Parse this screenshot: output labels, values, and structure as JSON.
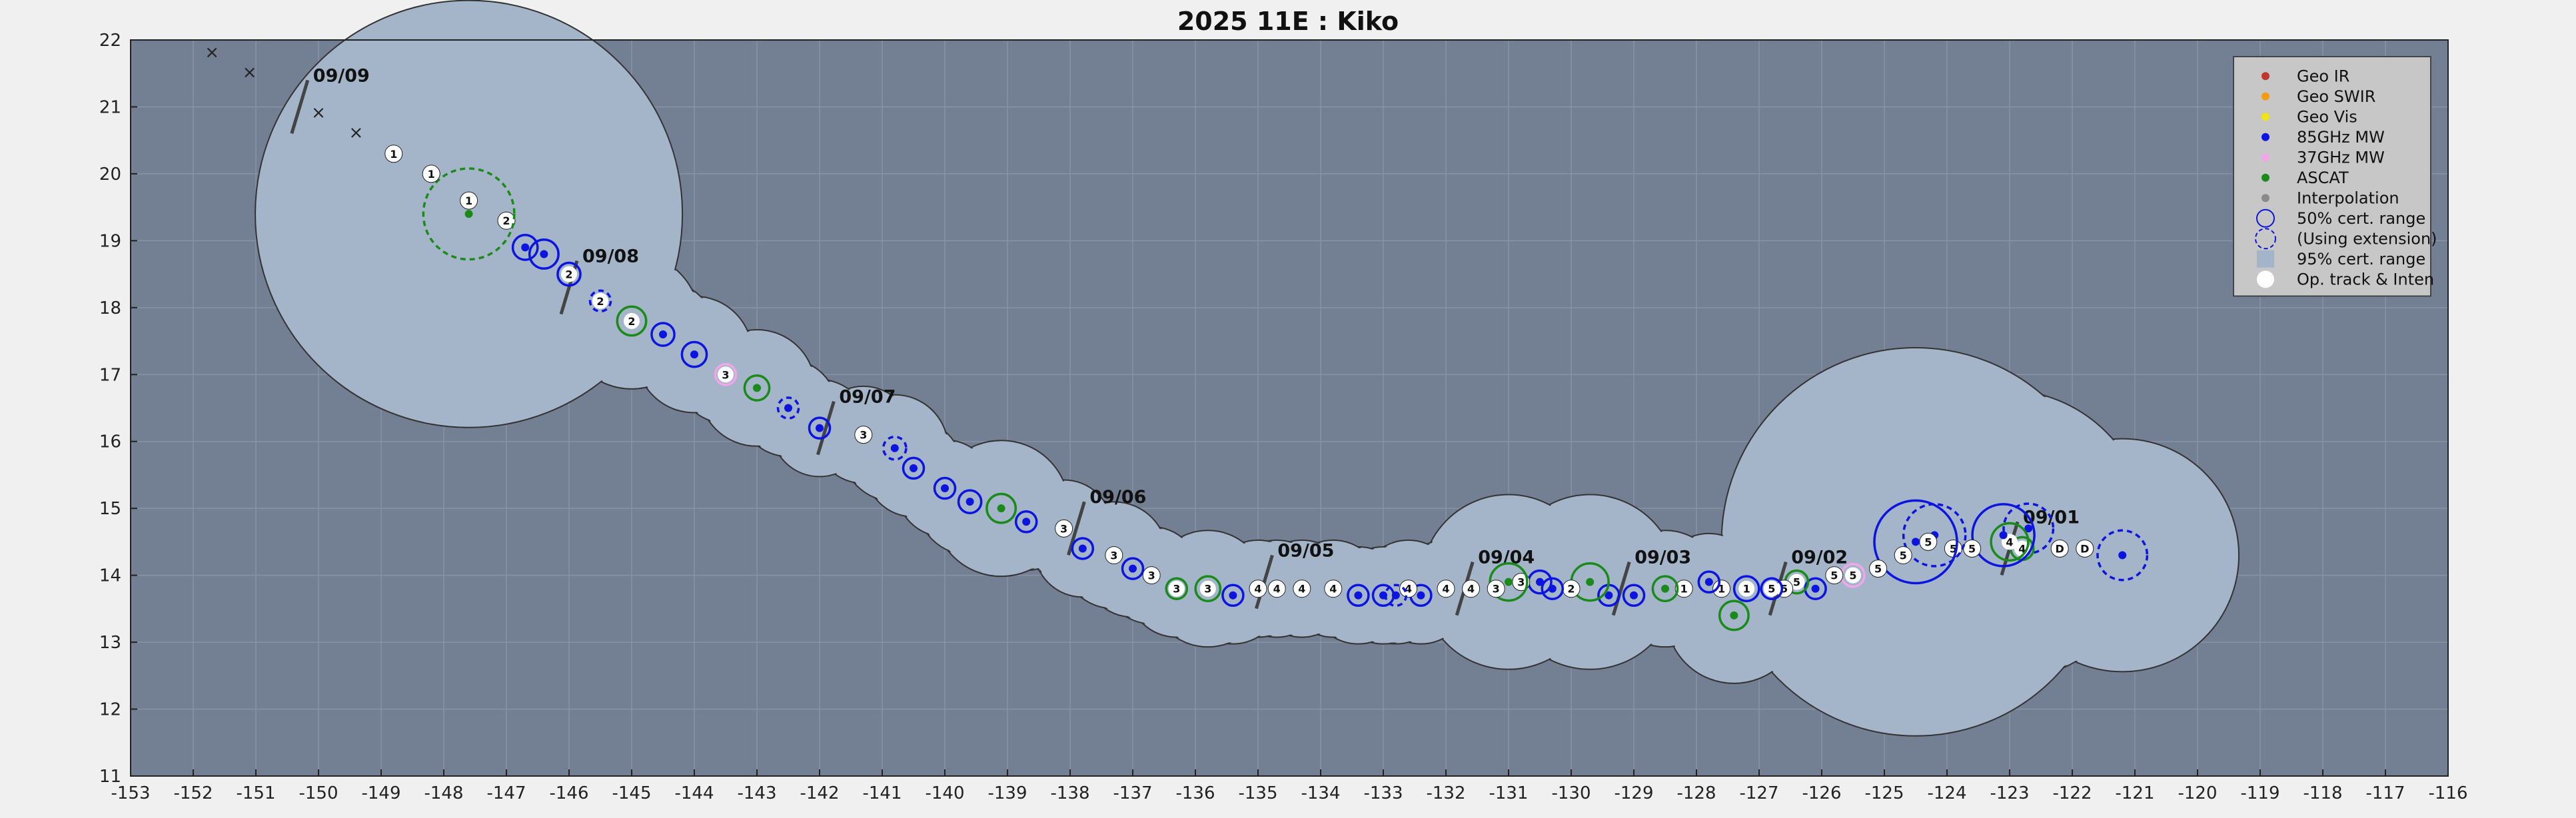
{
  "chart_data": {
    "type": "scatter",
    "title": "2025  11E :  Kiko",
    "xlabel": "",
    "ylabel": "",
    "xlim": [
      -153,
      -116
    ],
    "ylim": [
      11,
      22
    ],
    "xticks": [
      "-153",
      "-152",
      "-151",
      "-150",
      "-149",
      "-148",
      "-147",
      "-146",
      "-145",
      "-144",
      "-143",
      "-142",
      "-141",
      "-140",
      "-139",
      "-138",
      "-137",
      "-136",
      "-135",
      "-134",
      "-133",
      "-132",
      "-131",
      "-130",
      "-129",
      "-128",
      "-127",
      "-126",
      "-125",
      "-124",
      "-123",
      "-122",
      "-121",
      "-120",
      "-119",
      "-118",
      "-117",
      "-116"
    ],
    "yticks": [
      "11",
      "12",
      "13",
      "14",
      "15",
      "16",
      "17",
      "18",
      "19",
      "20",
      "21",
      "22"
    ],
    "grid": true,
    "legend_position": "top-right",
    "colors": {
      "background": "#737f93",
      "cone": "#a5b5c9",
      "geo_ir": "#c0392b",
      "geo_swir": "#f39c12",
      "geo_vis": "#f1e40f",
      "mw85": "#0b14e0",
      "mw37": "#f0a6e8",
      "ascat": "#1a8a1a",
      "interp": "#8a8a8a"
    },
    "legend": [
      {
        "label": "Geo IR",
        "kind": "dot",
        "color": "#c0392b"
      },
      {
        "label": "Geo SWIR",
        "kind": "dot",
        "color": "#f39c12"
      },
      {
        "label": "Geo Vis",
        "kind": "dot",
        "color": "#f1e40f"
      },
      {
        "label": "85GHz MW",
        "kind": "dot",
        "color": "#0b14e0"
      },
      {
        "label": "37GHz MW",
        "kind": "dot",
        "color": "#f0a6e8"
      },
      {
        "label": "ASCAT",
        "kind": "dot",
        "color": "#1a8a1a"
      },
      {
        "label": "Interpolation",
        "kind": "dot",
        "color": "#8a8a8a"
      },
      {
        "label": "50% cert. range",
        "kind": "ring"
      },
      {
        "label": "(Using extension)",
        "kind": "ring-dashed"
      },
      {
        "label": "95% cert. range",
        "kind": "box"
      },
      {
        "label": "Op. track & Inten",
        "kind": "white"
      }
    ],
    "track": [
      {
        "x": -121.2,
        "y": 14.3,
        "label": "",
        "src": "85",
        "r": 1.2,
        "dashed": true
      },
      {
        "x": -121.8,
        "y": 14.4,
        "label": "D",
        "src": "op",
        "r": 0.5
      },
      {
        "x": -122.2,
        "y": 14.4,
        "label": "D",
        "src": "op",
        "r": 0.5
      },
      {
        "x": -122.7,
        "y": 14.7,
        "label": "",
        "src": "85",
        "r": 1.2,
        "dashed": true
      },
      {
        "x": -122.8,
        "y": 14.4,
        "label": "4",
        "src": "ascat",
        "r": 0.55
      },
      {
        "x": -123.0,
        "y": 14.5,
        "label": "4",
        "src": "ascat",
        "r": 0.9
      },
      {
        "x": -123.1,
        "y": 14.6,
        "label": "",
        "src": "85",
        "r": 1.5,
        "dashed": false
      },
      {
        "x": -123.6,
        "y": 14.4,
        "label": "5",
        "src": "op",
        "r": 0.5
      },
      {
        "x": -123.9,
        "y": 14.4,
        "label": "5",
        "src": "op",
        "r": 0.5
      },
      {
        "x": -124.2,
        "y": 14.6,
        "label": "",
        "src": "85",
        "r": 1.5,
        "dashed": true
      },
      {
        "x": -124.3,
        "y": 14.5,
        "label": "5",
        "src": "op",
        "r": 0.55
      },
      {
        "x": -124.5,
        "y": 14.5,
        "label": "",
        "src": "85",
        "r": 2.0,
        "dashed": false
      },
      {
        "x": -124.7,
        "y": 14.3,
        "label": "5",
        "src": "op",
        "r": 0.55
      },
      {
        "x": -125.1,
        "y": 14.1,
        "label": "5",
        "src": "op",
        "r": 0.5
      },
      {
        "x": -125.5,
        "y": 14.0,
        "label": "5",
        "src": "37",
        "r": 0.55
      },
      {
        "x": -125.8,
        "y": 14.0,
        "label": "5",
        "src": "op",
        "r": 0.5
      },
      {
        "x": -126.1,
        "y": 13.8,
        "label": "",
        "src": "85",
        "r": 0.5,
        "dashed": false
      },
      {
        "x": -126.4,
        "y": 13.9,
        "label": "5",
        "src": "ascat",
        "r": 0.55
      },
      {
        "x": -126.6,
        "y": 13.8,
        "label": "5",
        "src": "op",
        "r": 0.5
      },
      {
        "x": -126.8,
        "y": 13.8,
        "label": "5",
        "src": "85",
        "r": 0.5,
        "dashed": false
      },
      {
        "x": -127.2,
        "y": 13.8,
        "label": "1",
        "src": "85",
        "r": 0.6,
        "dashed": false
      },
      {
        "x": -127.4,
        "y": 13.4,
        "label": "",
        "src": "ascat",
        "r": 0.7
      },
      {
        "x": -127.6,
        "y": 13.8,
        "label": "1",
        "src": "op",
        "r": 0.5
      },
      {
        "x": -127.8,
        "y": 13.9,
        "label": "",
        "src": "85",
        "r": 0.5,
        "dashed": false
      },
      {
        "x": -128.2,
        "y": 13.8,
        "label": "1",
        "src": "op",
        "r": 0.5
      },
      {
        "x": -128.5,
        "y": 13.8,
        "label": "",
        "src": "ascat",
        "r": 0.6
      },
      {
        "x": -129.0,
        "y": 13.7,
        "label": "",
        "src": "85",
        "r": 0.5,
        "dashed": false
      },
      {
        "x": -129.4,
        "y": 13.7,
        "label": "",
        "src": "85",
        "r": 0.5,
        "dashed": false
      },
      {
        "x": -129.7,
        "y": 13.9,
        "label": "",
        "src": "ascat",
        "r": 0.9
      },
      {
        "x": -130.0,
        "y": 13.8,
        "label": "2",
        "src": "op",
        "r": 0.5
      },
      {
        "x": -130.3,
        "y": 13.8,
        "label": "",
        "src": "85",
        "r": 0.5,
        "dashed": false
      },
      {
        "x": -130.5,
        "y": 13.9,
        "label": "",
        "src": "85",
        "r": 0.55,
        "dashed": false
      },
      {
        "x": -130.8,
        "y": 13.9,
        "label": "3",
        "src": "op",
        "r": 0.5
      },
      {
        "x": -131.0,
        "y": 13.9,
        "label": "",
        "src": "ascat",
        "r": 0.9
      },
      {
        "x": -131.2,
        "y": 13.8,
        "label": "3",
        "src": "op",
        "r": 0.5
      },
      {
        "x": -131.6,
        "y": 13.8,
        "label": "4",
        "src": "op",
        "r": 0.5
      },
      {
        "x": -132.0,
        "y": 13.8,
        "label": "4",
        "src": "op",
        "r": 0.5
      },
      {
        "x": -132.4,
        "y": 13.7,
        "label": "",
        "src": "85",
        "r": 0.5,
        "dashed": false
      },
      {
        "x": -132.6,
        "y": 13.8,
        "label": "4",
        "src": "op",
        "r": 0.5
      },
      {
        "x": -132.8,
        "y": 13.7,
        "label": "",
        "src": "85",
        "r": 0.5,
        "dashed": true
      },
      {
        "x": -133.0,
        "y": 13.7,
        "label": "",
        "src": "85",
        "r": 0.5,
        "dashed": false
      },
      {
        "x": -133.4,
        "y": 13.7,
        "label": "",
        "src": "85",
        "r": 0.5,
        "dashed": false
      },
      {
        "x": -133.8,
        "y": 13.8,
        "label": "4",
        "src": "op",
        "r": 0.5
      },
      {
        "x": -134.3,
        "y": 13.8,
        "label": "4",
        "src": "op",
        "r": 0.5
      },
      {
        "x": -134.7,
        "y": 13.8,
        "label": "4",
        "src": "op",
        "r": 0.5
      },
      {
        "x": -135.0,
        "y": 13.8,
        "label": "4",
        "src": "op",
        "r": 0.5
      },
      {
        "x": -135.4,
        "y": 13.7,
        "label": "",
        "src": "85",
        "r": 0.5,
        "dashed": false
      },
      {
        "x": -135.8,
        "y": 13.8,
        "label": "3",
        "src": "ascat",
        "r": 0.6
      },
      {
        "x": -136.3,
        "y": 13.8,
        "label": "3",
        "src": "ascat",
        "r": 0.5
      },
      {
        "x": -136.7,
        "y": 14.0,
        "label": "3",
        "src": "op",
        "r": 0.5
      },
      {
        "x": -137.0,
        "y": 14.1,
        "label": "",
        "src": "85",
        "r": 0.5,
        "dashed": false
      },
      {
        "x": -137.3,
        "y": 14.3,
        "label": "3",
        "src": "op",
        "r": 0.55
      },
      {
        "x": -137.8,
        "y": 14.4,
        "label": "",
        "src": "85",
        "r": 0.5,
        "dashed": false
      },
      {
        "x": -138.1,
        "y": 14.7,
        "label": "3",
        "src": "op",
        "r": 0.5
      },
      {
        "x": -138.7,
        "y": 14.8,
        "label": "",
        "src": "85",
        "r": 0.5,
        "dashed": false
      },
      {
        "x": -139.1,
        "y": 15.0,
        "label": "",
        "src": "ascat",
        "r": 0.7
      },
      {
        "x": -139.6,
        "y": 15.1,
        "label": "",
        "src": "85",
        "r": 0.55,
        "dashed": false
      },
      {
        "x": -140.0,
        "y": 15.3,
        "label": "",
        "src": "85",
        "r": 0.5,
        "dashed": false
      },
      {
        "x": -140.5,
        "y": 15.6,
        "label": "",
        "src": "85",
        "r": 0.5,
        "dashed": false
      },
      {
        "x": -140.8,
        "y": 15.9,
        "label": "",
        "src": "85",
        "r": 0.55,
        "dashed": true
      },
      {
        "x": -141.3,
        "y": 16.1,
        "label": "3",
        "src": "op",
        "r": 0.5
      },
      {
        "x": -142.0,
        "y": 16.2,
        "label": "",
        "src": "85",
        "r": 0.5,
        "dashed": false
      },
      {
        "x": -142.5,
        "y": 16.5,
        "label": "",
        "src": "85",
        "r": 0.5,
        "dashed": true
      },
      {
        "x": -143.0,
        "y": 16.8,
        "label": "",
        "src": "ascat",
        "r": 0.6
      },
      {
        "x": -143.5,
        "y": 17.0,
        "label": "3",
        "src": "37",
        "r": 0.5
      },
      {
        "x": -144.0,
        "y": 17.3,
        "label": "",
        "src": "85",
        "r": 0.6,
        "dashed": false
      },
      {
        "x": -144.5,
        "y": 17.6,
        "label": "",
        "src": "85",
        "r": 0.55,
        "dashed": false
      },
      {
        "x": -145.0,
        "y": 17.8,
        "label": "2",
        "src": "ascat",
        "r": 0.7
      },
      {
        "x": -145.5,
        "y": 18.1,
        "label": "2",
        "src": "85",
        "r": 0.5,
        "dashed": true
      },
      {
        "x": -146.0,
        "y": 18.5,
        "label": "2",
        "src": "85",
        "r": 0.55,
        "dashed": false
      },
      {
        "x": -146.4,
        "y": 18.8,
        "label": "",
        "src": "85",
        "r": 0.7,
        "dashed": false
      },
      {
        "x": -146.7,
        "y": 18.9,
        "label": "",
        "src": "85",
        "r": 0.6,
        "dashed": false
      },
      {
        "x": -147.0,
        "y": 19.3,
        "label": "2",
        "src": "op",
        "r": 0.5
      },
      {
        "x": -147.6,
        "y": 19.4,
        "label": "",
        "src": "ascat",
        "r": 2.2,
        "dashed": true
      },
      {
        "x": -147.6,
        "y": 19.6,
        "label": "1",
        "src": "op",
        "r": 0.5
      },
      {
        "x": -148.2,
        "y": 20.0,
        "label": "1",
        "src": "op",
        "r": 0.5
      },
      {
        "x": -148.8,
        "y": 20.3,
        "label": "1",
        "src": "op",
        "r": 0.5
      }
    ],
    "extra_tracks": [
      {
        "x": -151.7,
        "y": 21.8,
        "label": "×"
      },
      {
        "x": -151.1,
        "y": 21.5,
        "label": "×"
      },
      {
        "x": -150.0,
        "y": 20.9,
        "label": "×"
      },
      {
        "x": -149.4,
        "y": 20.6,
        "label": "×"
      }
    ],
    "date_marks": [
      {
        "x": -123.0,
        "y": 14.6,
        "label": "09/01"
      },
      {
        "x": -126.7,
        "y": 14.0,
        "label": "09/02"
      },
      {
        "x": -129.2,
        "y": 14.0,
        "label": "09/03"
      },
      {
        "x": -131.7,
        "y": 14.0,
        "label": "09/04"
      },
      {
        "x": -134.9,
        "y": 14.1,
        "label": "09/05"
      },
      {
        "x": -137.9,
        "y": 14.9,
        "label": "09/06"
      },
      {
        "x": -141.9,
        "y": 16.4,
        "label": "09/07"
      },
      {
        "x": -146.0,
        "y": 18.5,
        "label": "09/08"
      },
      {
        "x": -150.3,
        "y": 21.2,
        "label": "09/09"
      }
    ]
  }
}
